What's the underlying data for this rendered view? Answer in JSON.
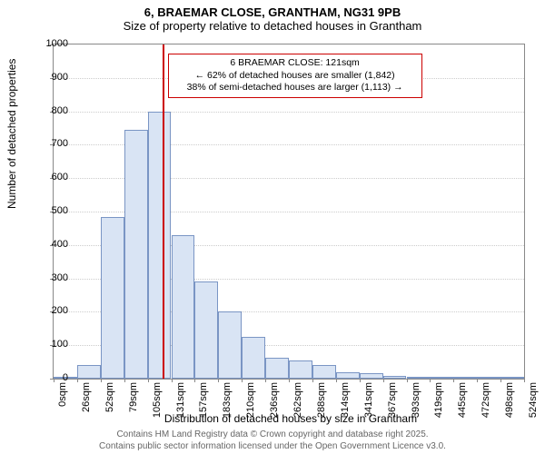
{
  "title": "6, BRAEMAR CLOSE, GRANTHAM, NG31 9PB",
  "subtitle": "Size of property relative to detached houses in Grantham",
  "ylabel": "Number of detached properties",
  "xlabel": "Distribution of detached houses by size in Grantham",
  "chart": {
    "type": "histogram",
    "background_color": "#ffffff",
    "grid_color": "#cccccc",
    "border_color": "#888888",
    "bar_fill": "#d9e4f4",
    "bar_stroke": "#7a95c4",
    "marker_color": "#cc0000",
    "ylim": [
      0,
      1000
    ],
    "ytick_step": 100,
    "xticks": [
      "0sqm",
      "26sqm",
      "52sqm",
      "79sqm",
      "105sqm",
      "131sqm",
      "157sqm",
      "183sqm",
      "210sqm",
      "236sqm",
      "262sqm",
      "288sqm",
      "314sqm",
      "341sqm",
      "367sqm",
      "393sqm",
      "419sqm",
      "445sqm",
      "472sqm",
      "498sqm",
      "524sqm"
    ],
    "values": [
      0,
      42,
      485,
      745,
      800,
      430,
      290,
      200,
      125,
      62,
      55,
      40,
      20,
      15,
      8,
      5,
      3,
      2,
      1,
      1
    ],
    "marker_value_sqm": 121,
    "annotation": {
      "line1": "6 BRAEMAR CLOSE: 121sqm",
      "line2": "← 62% of detached houses are smaller (1,842)",
      "line3": "38% of semi-detached houses are larger (1,113) →"
    }
  },
  "footer": {
    "line1": "Contains HM Land Registry data © Crown copyright and database right 2025.",
    "line2": "Contains public sector information licensed under the Open Government Licence v3.0."
  }
}
